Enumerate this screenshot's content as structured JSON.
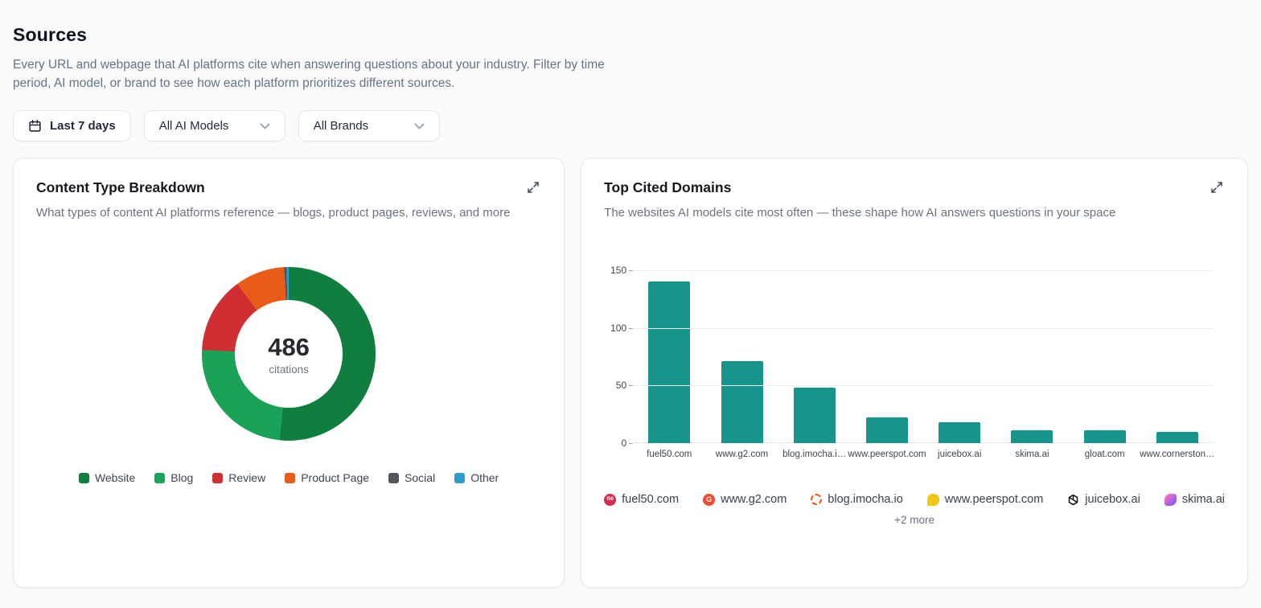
{
  "page": {
    "title": "Sources",
    "description": "Every URL and webpage that AI platforms cite when answering questions about your industry. Filter by time period, AI model, or brand to see how each platform prioritizes different sources."
  },
  "filters": {
    "date_range": {
      "label": "Last 7 days",
      "icon": "calendar-icon"
    },
    "model_select": {
      "value": "All AI Models",
      "icon": "chevron-down-icon"
    },
    "brand_select": {
      "value": "All Brands",
      "icon": "chevron-down-icon"
    }
  },
  "cards": {
    "content_type": {
      "title": "Content Type Breakdown",
      "subtitle": "What types of content AI platforms reference — blogs, product pages, reviews, and more",
      "expand_icon": "expand-diagonal-icon",
      "center_value": "486",
      "center_label": "citations"
    },
    "top_domains": {
      "title": "Top Cited Domains",
      "subtitle": "The websites AI models cite most often — these shape how AI answers questions in your space",
      "expand_icon": "expand-diagonal-icon",
      "more_label": "+2 more",
      "chips": [
        {
          "domain": "fuel50.com",
          "icon": "fuel50-favicon",
          "glyph": "f50",
          "color": "#d5294d"
        },
        {
          "domain": "www.g2.com",
          "icon": "g2-favicon",
          "glyph": "G",
          "color": "#ef4b2d"
        },
        {
          "domain": "blog.imocha.io",
          "icon": "imocha-favicon",
          "glyph": "",
          "color": "#f1570f"
        },
        {
          "domain": "www.peerspot.com",
          "icon": "peerspot-favicon",
          "glyph": "",
          "color": "#f2c712"
        },
        {
          "domain": "juicebox.ai",
          "icon": "juicebox-favicon",
          "glyph": "",
          "color": "#111111"
        },
        {
          "domain": "skima.ai",
          "icon": "skima-favicon",
          "glyph": "",
          "color": "#8b5cf6"
        }
      ]
    }
  },
  "chart_data": [
    {
      "type": "pie",
      "title": "Content Type Breakdown",
      "subtype": "donut",
      "center_total": 486,
      "center_unit": "citations",
      "labels": [
        "Website",
        "Blog",
        "Review",
        "Product Page",
        "Social",
        "Other"
      ],
      "values": [
        251,
        117,
        69,
        45,
        2,
        2
      ],
      "colors": [
        "#0f7e3e",
        "#1aa257",
        "#cf2f33",
        "#e85c17",
        "#52565c",
        "#2c9dd3"
      ],
      "legend_position": "bottom"
    },
    {
      "type": "bar",
      "title": "Top Cited Domains",
      "categories": [
        "fuel50.com",
        "www.g2.com",
        "blog.imocha.i…",
        "www.peerspot.com",
        "juicebox.ai",
        "skima.ai",
        "gloat.com",
        "www.cornerston…"
      ],
      "values": [
        140,
        71,
        48,
        22,
        18,
        11,
        11,
        10
      ],
      "bar_color": "#17948b",
      "xlabel": "",
      "ylabel": "",
      "ylim": [
        0,
        150
      ],
      "yticks": [
        0,
        50,
        100,
        150
      ],
      "grid": true,
      "legend_position": "none"
    }
  ]
}
